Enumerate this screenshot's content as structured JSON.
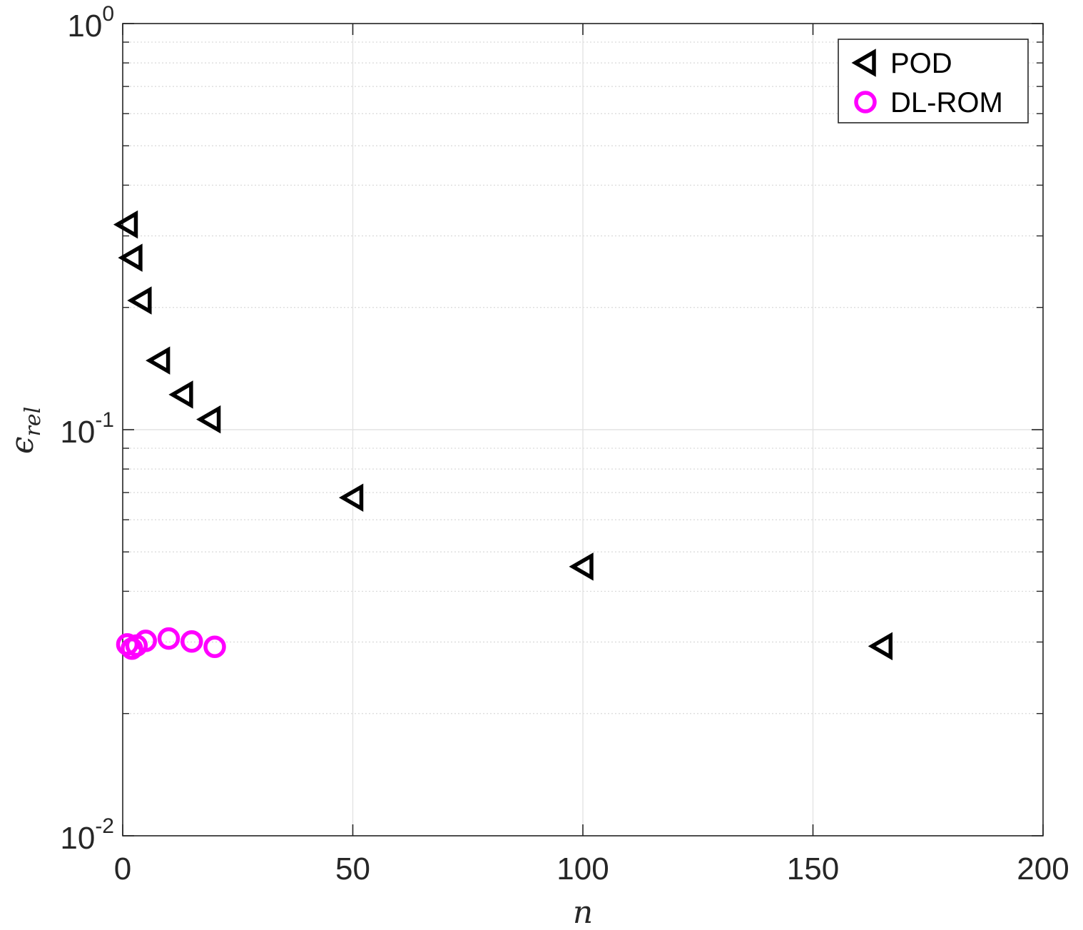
{
  "chart_data": {
    "type": "scatter",
    "xlabel": "n",
    "ylabel_symbol": "ϵ",
    "ylabel_subscript": "rel",
    "xlim": [
      0,
      200
    ],
    "ylim": [
      0.01,
      1
    ],
    "yscale": "log",
    "grid": true,
    "legend_position": "top-right",
    "x_ticks": [
      {
        "value": 0,
        "label": "0"
      },
      {
        "value": 50,
        "label": "50"
      },
      {
        "value": 100,
        "label": "100"
      },
      {
        "value": 150,
        "label": "150"
      },
      {
        "value": 200,
        "label": "200"
      }
    ],
    "y_ticks": [
      {
        "value": 0.01,
        "base": "10",
        "exp": "-2"
      },
      {
        "value": 0.1,
        "base": "10",
        "exp": "-1"
      },
      {
        "value": 1,
        "base": "10",
        "exp": "0"
      }
    ],
    "series": [
      {
        "name": "POD",
        "marker": "triangle-left",
        "color": "#000000",
        "x": [
          1,
          2,
          4,
          8,
          13,
          19,
          50,
          100,
          165
        ],
        "y": [
          0.32,
          0.265,
          0.208,
          0.148,
          0.122,
          0.106,
          0.068,
          0.046,
          0.0293
        ]
      },
      {
        "name": "DL-ROM",
        "marker": "circle",
        "color": "#ff00ff",
        "x": [
          1,
          2,
          3,
          5,
          10,
          15,
          20
        ],
        "y": [
          0.0296,
          0.0289,
          0.0294,
          0.0302,
          0.0306,
          0.0301,
          0.0292
        ]
      }
    ]
  }
}
